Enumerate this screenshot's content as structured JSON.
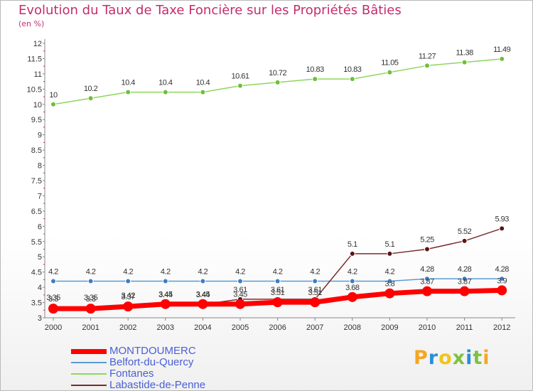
{
  "title": "Evolution du Taux de Taxe Foncière sur les Propriétés Bâties",
  "subtitle": "(en %)",
  "logo": {
    "letters": [
      "P",
      "r",
      "o",
      "x",
      "i",
      "t",
      "i"
    ],
    "colors": [
      "#f5a623",
      "#2a8fd6",
      "#f0c419",
      "#7cc242",
      "#2a8fd6",
      "#7cc242",
      "#f5a623"
    ]
  },
  "chart_data": {
    "type": "line",
    "x": [
      "2000",
      "2001",
      "2002",
      "2003",
      "2004",
      "2005",
      "2006",
      "2007",
      "2008",
      "2009",
      "2010",
      "2011",
      "2012"
    ],
    "ylim": [
      3,
      12
    ],
    "yticks": [
      "3",
      "3.5",
      "4",
      "4.5",
      "5",
      "5.5",
      "6",
      "6.5",
      "7",
      "7.5",
      "8",
      "8.5",
      "9",
      "9.5",
      "10",
      "10.5",
      "11",
      "11.5",
      "12"
    ],
    "grid": false,
    "legend_position": "bottom-left",
    "series": [
      {
        "name": "MONTDOUMERC",
        "color": "#ff0000",
        "values": [
          3.3,
          3.3,
          3.37,
          3.45,
          3.45,
          3.45,
          3.51,
          3.51,
          3.68,
          3.8,
          3.87,
          3.87,
          3.9
        ],
        "labels": [
          "3.3",
          "3.3",
          "3.37",
          "3.45",
          "3.45",
          "3.45",
          "3.51",
          "3.51",
          "3.68",
          "3.8",
          "3.87",
          "3.87",
          "3.9"
        ]
      },
      {
        "name": "Belfort-du-Quercy",
        "color": "#5b9bd5",
        "values": [
          4.2,
          4.2,
          4.2,
          4.2,
          4.2,
          4.2,
          4.2,
          4.2,
          4.2,
          4.2,
          4.28,
          4.28,
          4.28
        ],
        "labels": [
          "4.2",
          "4.2",
          "4.2",
          "4.2",
          "4.2",
          "4.2",
          "4.2",
          "4.2",
          "4.2",
          "4.2",
          "4.28",
          "4.28",
          "4.28"
        ]
      },
      {
        "name": "Fontanes",
        "color": "#8fd65b",
        "values": [
          10,
          10.2,
          10.4,
          10.4,
          10.4,
          10.61,
          10.72,
          10.83,
          10.83,
          11.05,
          11.27,
          11.38,
          11.49
        ],
        "labels": [
          "10",
          "10.2",
          "10.4",
          "10.4",
          "10.4",
          "10.61",
          "10.72",
          "10.83",
          "10.83",
          "11.05",
          "11.27",
          "11.38",
          "11.49"
        ]
      },
      {
        "name": "Labastide-de-Penne",
        "color": "#7b2c2c",
        "values": [
          3.35,
          3.35,
          3.42,
          3.44,
          3.44,
          3.61,
          3.61,
          3.61,
          5.1,
          5.1,
          5.25,
          5.52,
          5.93
        ],
        "labels": [
          "3.35",
          "3.35",
          "3.42",
          "3.44",
          "3.44",
          "3.61",
          "3.61",
          "3.61",
          "5.1",
          "5.1",
          "5.25",
          "5.52",
          "5.93"
        ]
      }
    ]
  }
}
